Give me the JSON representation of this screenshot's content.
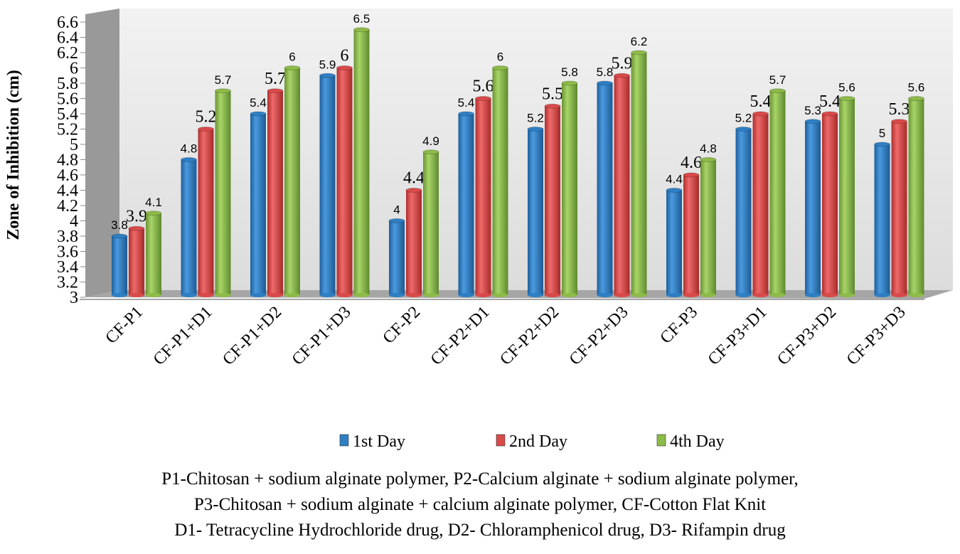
{
  "chart_data": {
    "type": "bar",
    "ylabel": "Zone of Inhibition (cm)",
    "xlabel": "",
    "ylim": [
      3,
      6.6
    ],
    "yticks": [
      "3",
      "3.2",
      "3.4",
      "3.6",
      "3.8",
      "4",
      "4.2",
      "4.4",
      "4.6",
      "4.8",
      "5",
      "5.2",
      "5.4",
      "5.6",
      "5.8",
      "6",
      "6.2",
      "6.4",
      "6.6"
    ],
    "grid": false,
    "legend_position": "bottom",
    "categories": [
      "CF-P1",
      "CF-P1+D1",
      "CF-P1+D2",
      "CF-P1+D3",
      "CF-P2",
      "CF-P2+D1",
      "CF-P2+D2",
      "CF-P2+D3",
      "CF-P3",
      "CF-P3+D1",
      "CF-P3+D2",
      "CF-P3+D3"
    ],
    "series": [
      {
        "name": "1st Day",
        "color": "#2e7fc4",
        "values": [
          3.8,
          4.8,
          5.4,
          5.9,
          4,
          5.4,
          5.2,
          5.8,
          4.4,
          5.2,
          5.3,
          5
        ]
      },
      {
        "name": "2nd Day",
        "color": "#d94a4a",
        "values": [
          3.9,
          5.2,
          5.7,
          6,
          4.4,
          5.6,
          5.5,
          5.9,
          4.6,
          5.4,
          5.4,
          5.3
        ]
      },
      {
        "name": "4th Day",
        "color": "#8dbb48",
        "values": [
          4.1,
          5.7,
          6,
          6.5,
          4.9,
          6,
          5.8,
          6.2,
          4.8,
          5.7,
          5.6,
          5.6
        ]
      }
    ]
  },
  "caption": {
    "line1": "P1-Chitosan + sodium alginate polymer, P2-Calcium alginate + sodium alginate polymer,",
    "line2": "P3-Chitosan + sodium alginate + calcium alginate polymer, CF-Cotton Flat Knit",
    "line3": "D1- Tetracycline Hydrochloride drug, D2- Chloramphenicol drug, D3- Rifampin drug"
  }
}
